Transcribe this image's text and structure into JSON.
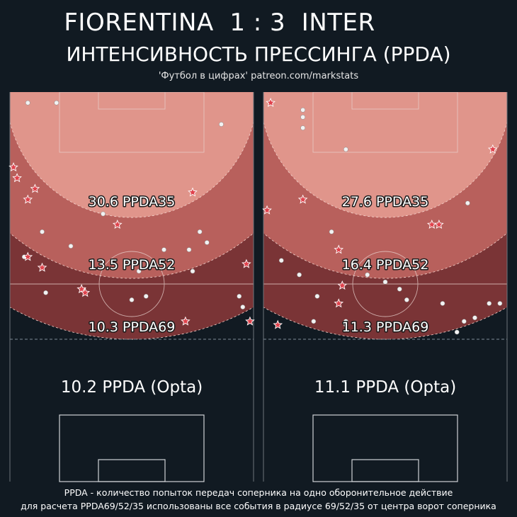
{
  "header": {
    "title": "FIORENTINA  1 : 3  INTER",
    "subtitle": "ИНТЕНСИВНОСТЬ ПРЕССИНГА (PPDA)",
    "credit": "'Футбол в цифрах' patreon.com/markstats"
  },
  "footer": {
    "line1": "PPDA - количество попыток передач соперника на одно оборонительное действие",
    "line2": "для расчета PPDA69/52/35 использованы все события в радиусе 69/52/35 от центра ворот соперника"
  },
  "colors": {
    "background": "#111a22",
    "zone35": "#e0958b",
    "zone52": "#b8605c",
    "zone69": "#7a3436",
    "point": "#f2f2f2",
    "star": "#e0424c"
  },
  "chart_data": [
    {
      "type": "scatter",
      "team": "FIORENTINA",
      "zones": [
        {
          "radius": 35,
          "label": "30.6 PPDA35"
        },
        {
          "radius": 52,
          "label": "13.5 PPDA52"
        },
        {
          "radius": 69,
          "label": "10.3 PPDA69"
        }
      ],
      "opta_label": "10.2 PPDA (Opta)",
      "x_range": [
        0,
        68
      ],
      "y_range": [
        0,
        105
      ],
      "dots": [
        {
          "x": 5,
          "y": 102
        },
        {
          "x": 13,
          "y": 102
        },
        {
          "x": 59,
          "y": 96
        },
        {
          "x": 45,
          "y": 75
        },
        {
          "x": 26,
          "y": 71
        },
        {
          "x": 53,
          "y": 66
        },
        {
          "x": 55,
          "y": 63
        },
        {
          "x": 9,
          "y": 66
        },
        {
          "x": 17,
          "y": 62
        },
        {
          "x": 43,
          "y": 61
        },
        {
          "x": 50,
          "y": 61
        },
        {
          "x": 4,
          "y": 59
        },
        {
          "x": 36,
          "y": 55
        },
        {
          "x": 51,
          "y": 55
        },
        {
          "x": 38,
          "y": 48
        },
        {
          "x": 34,
          "y": 47
        },
        {
          "x": 64,
          "y": 48
        },
        {
          "x": 65,
          "y": 45
        },
        {
          "x": 10,
          "y": 49
        }
      ],
      "stars": [
        {
          "x": 1,
          "y": 84
        },
        {
          "x": 2,
          "y": 81
        },
        {
          "x": 7,
          "y": 78
        },
        {
          "x": 5,
          "y": 75
        },
        {
          "x": 51,
          "y": 77
        },
        {
          "x": 30,
          "y": 68
        },
        {
          "x": 5,
          "y": 59
        },
        {
          "x": 9,
          "y": 56
        },
        {
          "x": 66,
          "y": 57
        },
        {
          "x": 20,
          "y": 50
        },
        {
          "x": 21,
          "y": 49
        },
        {
          "x": 49,
          "y": 41
        },
        {
          "x": 67,
          "y": 41
        }
      ]
    },
    {
      "type": "scatter",
      "team": "INTER",
      "zones": [
        {
          "radius": 35,
          "label": "27.6 PPDA35"
        },
        {
          "radius": 52,
          "label": "16.4 PPDA52"
        },
        {
          "radius": 69,
          "label": "11.3 PPDA69"
        }
      ],
      "opta_label": "11.1 PPDA (Opta)",
      "x_range": [
        0,
        68
      ],
      "y_range": [
        0,
        105
      ],
      "dots": [
        {
          "x": 11,
          "y": 100
        },
        {
          "x": 11,
          "y": 98
        },
        {
          "x": 11,
          "y": 95
        },
        {
          "x": 23,
          "y": 89
        },
        {
          "x": 57,
          "y": 74
        },
        {
          "x": 19,
          "y": 66
        },
        {
          "x": 5,
          "y": 58
        },
        {
          "x": 29,
          "y": 54
        },
        {
          "x": 34,
          "y": 52
        },
        {
          "x": 10,
          "y": 54
        },
        {
          "x": 15,
          "y": 48
        },
        {
          "x": 38,
          "y": 50
        },
        {
          "x": 40,
          "y": 47
        },
        {
          "x": 50,
          "y": 46
        },
        {
          "x": 63,
          "y": 46
        },
        {
          "x": 66,
          "y": 46
        },
        {
          "x": 59,
          "y": 42
        },
        {
          "x": 14,
          "y": 41
        },
        {
          "x": 56,
          "y": 41
        },
        {
          "x": 23,
          "y": 41
        },
        {
          "x": 23,
          "y": 40
        },
        {
          "x": 54,
          "y": 38
        }
      ],
      "stars": [
        {
          "x": 2,
          "y": 102
        },
        {
          "x": 64,
          "y": 89
        },
        {
          "x": 11,
          "y": 75
        },
        {
          "x": 1,
          "y": 72
        },
        {
          "x": 47,
          "y": 68
        },
        {
          "x": 49,
          "y": 68
        },
        {
          "x": 21,
          "y": 61
        },
        {
          "x": 22,
          "y": 51
        },
        {
          "x": 21,
          "y": 46
        },
        {
          "x": 4,
          "y": 40
        }
      ]
    }
  ]
}
